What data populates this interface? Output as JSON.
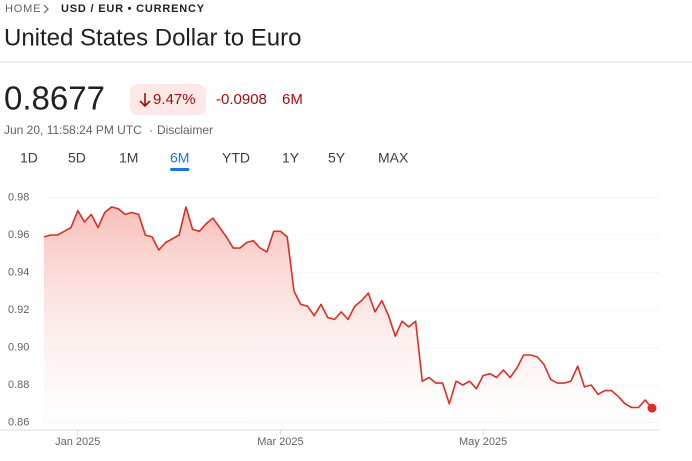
{
  "breadcrumb": {
    "home": "HOME",
    "current": "USD / EUR • CURRENCY"
  },
  "title": "United States Dollar to Euro",
  "quote": {
    "price": "0.8677",
    "change_percent": "9.47%",
    "change": "-0.0908",
    "period": "6M",
    "timestamp": "Jun 20, 11:58:24 PM UTC",
    "disclaimer": "Disclaimer"
  },
  "range_tabs": [
    "1D",
    "5D",
    "1M",
    "6M",
    "YTD",
    "1Y",
    "5Y",
    "MAX"
  ],
  "active_range": "6M",
  "chart_data": {
    "type": "line",
    "categories": [
      null,
      null,
      null,
      null,
      null,
      "Jan 2025",
      null,
      null,
      null,
      null,
      null,
      null,
      null,
      null,
      null,
      null,
      null,
      null,
      null,
      null,
      null,
      null,
      null,
      null,
      null,
      null,
      null,
      null,
      null,
      null,
      null,
      null,
      null,
      null,
      null,
      "Mar 2025",
      null,
      null,
      null,
      null,
      null,
      null,
      null,
      null,
      null,
      null,
      null,
      null,
      null,
      null,
      null,
      null,
      null,
      null,
      null,
      null,
      null,
      null,
      null,
      null,
      null,
      null,
      null,
      null,
      null,
      "May 2025",
      null,
      null,
      null,
      null,
      null,
      null,
      null,
      null,
      null,
      null,
      null,
      null,
      null,
      null,
      null,
      null,
      null,
      null,
      null,
      null,
      null,
      null,
      null,
      null,
      null
    ],
    "series": [
      {
        "color": "#d93025",
        "values": [
          0.959,
          0.96,
          0.96,
          0.962,
          0.964,
          0.973,
          0.967,
          0.971,
          0.964,
          0.972,
          0.975,
          0.974,
          0.971,
          0.972,
          0.971,
          0.96,
          0.959,
          0.952,
          0.956,
          0.958,
          0.96,
          0.975,
          0.963,
          0.962,
          0.966,
          0.969,
          0.964,
          0.959,
          0.953,
          0.953,
          0.956,
          0.957,
          0.953,
          0.951,
          0.962,
          0.962,
          0.959,
          0.93,
          0.923,
          0.922,
          0.917,
          0.923,
          0.916,
          0.915,
          0.919,
          0.915,
          0.922,
          0.925,
          0.929,
          0.919,
          0.925,
          0.917,
          0.906,
          0.914,
          0.911,
          0.914,
          0.882,
          0.884,
          0.881,
          0.881,
          0.87,
          0.882,
          0.88,
          0.882,
          0.878,
          0.885,
          0.886,
          0.884,
          0.888,
          0.884,
          0.889,
          0.896,
          0.896,
          0.895,
          0.891,
          0.883,
          0.881,
          0.881,
          0.882,
          0.89,
          0.879,
          0.88,
          0.875,
          0.877,
          0.877,
          0.874,
          0.87,
          0.868,
          0.868,
          0.872,
          0.8677
        ]
      }
    ],
    "ylim": [
      0.856,
      0.984
    ],
    "yticks": [
      0.86,
      {
        "value": 0.88,
        "label": "0.88"
      },
      {
        "value": 0.9,
        "label": "0.90"
      },
      0.92,
      0.94,
      0.96,
      0.98
    ],
    "grid": true
  }
}
